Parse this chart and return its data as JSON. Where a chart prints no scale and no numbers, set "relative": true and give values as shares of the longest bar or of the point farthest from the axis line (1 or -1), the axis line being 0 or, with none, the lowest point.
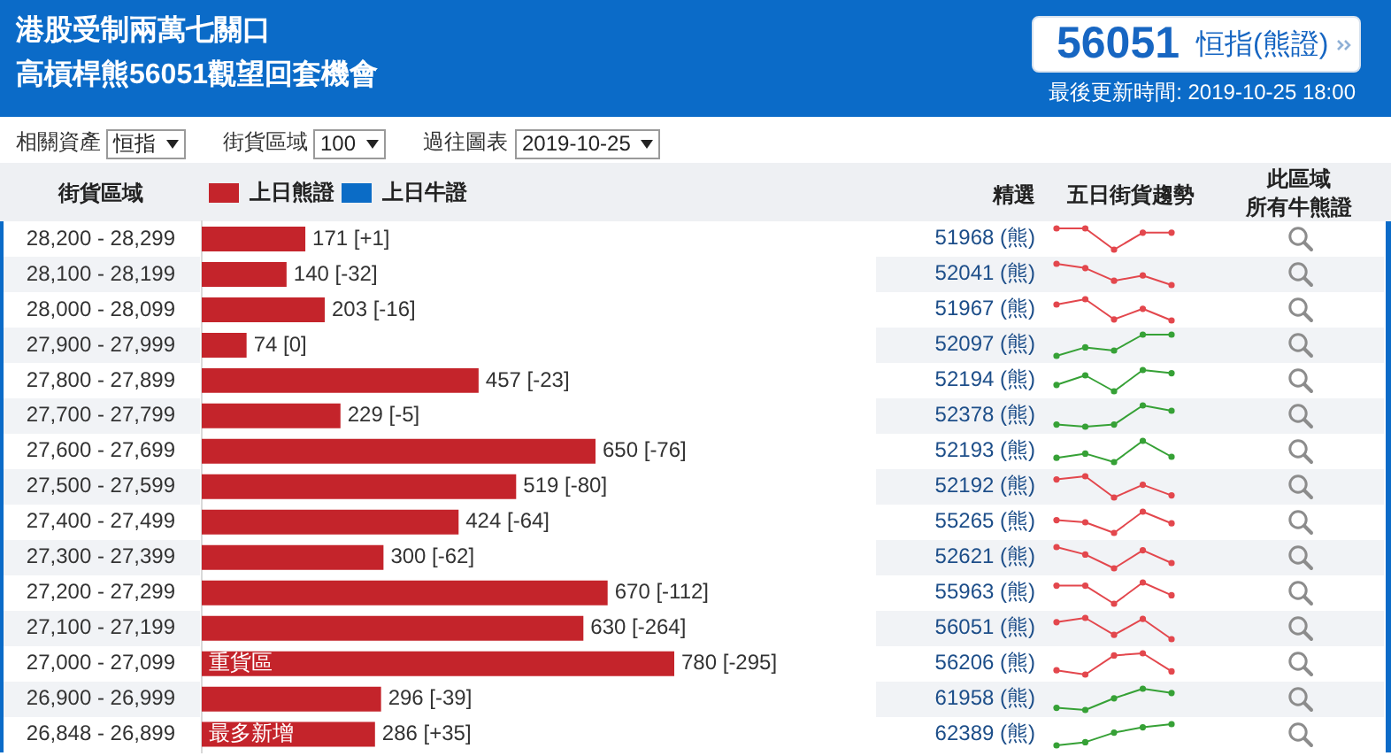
{
  "chart_data": [
    {
      "type": "bar",
      "orientation": "horizontal",
      "title": "港股受制兩萬七關口",
      "subtitle": "高槓桿熊56051觀望回套機會",
      "ylabel": "街貨區域",
      "legend": "top left",
      "categories": [
        "28,200 - 28,299",
        "28,100 - 28,199",
        "28,000 - 28,099",
        "27,900 - 27,999",
        "27,800 - 27,899",
        "27,700 - 27,799",
        "27,600 - 27,699",
        "27,500 - 27,599",
        "27,400 - 27,499",
        "27,300 - 27,399",
        "27,200 - 27,299",
        "27,100 - 27,199",
        "27,000 - 27,099",
        "26,900 - 26,999",
        "26,848 - 26,899"
      ],
      "series": [
        {
          "name": "上日熊證",
          "color": "#c4242b",
          "values": [
            171,
            140,
            203,
            74,
            457,
            229,
            650,
            519,
            424,
            300,
            670,
            630,
            780,
            296,
            286
          ],
          "value_labels": [
            "171 [+1]",
            "140 [-32]",
            "203 [-16]",
            "74 [0]",
            "457 [-23]",
            "229 [-5]",
            "650 [-76]",
            "519 [-80]",
            "424 [-64]",
            "300 [-62]",
            "670 [-112]",
            "630 [-264]",
            "780 [-295]",
            "296 [-39]",
            "286 [+35]"
          ]
        },
        {
          "name": "上日牛證",
          "color": "#0b6cc6",
          "values": [
            null,
            null,
            null,
            null,
            null,
            null,
            null,
            null,
            null,
            null,
            null,
            null,
            null,
            null,
            null
          ]
        }
      ],
      "annotations": [
        "56051",
        "恒指(熊證)",
        "最後更新時間: 2019-10-25 18:00",
        "相關資產",
        "恒指",
        "街貨區域",
        "100",
        "過往圖表",
        "2019-10-25",
        "精選",
        "五日街貨趨勢",
        "此區域",
        "所有牛熊證",
        "51968 (熊)",
        "52041 (熊)",
        "51967 (熊)",
        "52097 (熊)",
        "52194 (熊)",
        "52378 (熊)",
        "52193 (熊)",
        "52192 (熊)",
        "55265 (熊)",
        "52621 (熊)",
        "55963 (熊)",
        "56051 (熊)",
        "56206 (熊)",
        "61958 (熊)",
        "62389 (熊)",
        {
          "text": "重貨區",
          "x": 0,
          "y": "27,000 - 27,099"
        },
        {
          "text": "最多新增",
          "x": 0,
          "y": "26,848 - 26,899"
        }
      ]
    },
    {
      "type": "line",
      "relative": true,
      "categories": [
        null,
        null,
        null,
        null,
        null
      ],
      "values": [
        1,
        1,
        0,
        0.8,
        0.8
      ],
      "color": "#e3474d",
      "marker": "circle"
    },
    {
      "type": "line",
      "relative": true,
      "categories": [
        null,
        null,
        null,
        null,
        null
      ],
      "values": [
        1,
        0.8,
        0.2,
        0.45,
        0
      ],
      "color": "#e3474d",
      "marker": "circle"
    },
    {
      "type": "line",
      "relative": true,
      "categories": [
        null,
        null,
        null,
        null,
        null
      ],
      "values": [
        0.75,
        1,
        0.05,
        0.55,
        0
      ],
      "color": "#e3474d",
      "marker": "circle"
    },
    {
      "type": "line",
      "relative": true,
      "categories": [
        null,
        null,
        null,
        null,
        null
      ],
      "values": [
        0,
        0.4,
        0.25,
        1,
        1
      ],
      "color": "#36a136",
      "marker": "circle"
    },
    {
      "type": "line",
      "relative": true,
      "categories": [
        null,
        null,
        null,
        null,
        null
      ],
      "values": [
        0.3,
        0.75,
        0,
        1,
        0.85
      ],
      "color": "#36a136",
      "marker": "circle"
    },
    {
      "type": "line",
      "relative": true,
      "categories": [
        null,
        null,
        null,
        null,
        null
      ],
      "values": [
        0.1,
        0,
        0.1,
        1,
        0.75
      ],
      "color": "#36a136",
      "marker": "circle"
    },
    {
      "type": "line",
      "relative": true,
      "categories": [
        null,
        null,
        null,
        null,
        null
      ],
      "values": [
        0.2,
        0.4,
        0,
        1,
        0.25
      ],
      "color": "#36a136",
      "marker": "circle"
    },
    {
      "type": "line",
      "relative": true,
      "categories": [
        null,
        null,
        null,
        null,
        null
      ],
      "values": [
        0.85,
        1,
        0,
        0.6,
        0.1
      ],
      "color": "#e3474d",
      "marker": "circle"
    },
    {
      "type": "line",
      "relative": true,
      "categories": [
        null,
        null,
        null,
        null,
        null
      ],
      "values": [
        0.6,
        0.5,
        0,
        1,
        0.45
      ],
      "color": "#e3474d",
      "marker": "circle"
    },
    {
      "type": "line",
      "relative": true,
      "categories": [
        null,
        null,
        null,
        null,
        null
      ],
      "values": [
        1,
        0.65,
        0,
        0.85,
        0.25
      ],
      "color": "#e3474d",
      "marker": "circle"
    },
    {
      "type": "line",
      "relative": true,
      "categories": [
        null,
        null,
        null,
        null,
        null
      ],
      "values": [
        0.85,
        0.85,
        0,
        1,
        0.4
      ],
      "color": "#e3474d",
      "marker": "circle"
    },
    {
      "type": "line",
      "relative": true,
      "categories": [
        null,
        null,
        null,
        null,
        null
      ],
      "values": [
        0.8,
        1,
        0.2,
        0.95,
        0
      ],
      "color": "#e3474d",
      "marker": "circle"
    },
    {
      "type": "line",
      "relative": true,
      "categories": [
        null,
        null,
        null,
        null,
        null
      ],
      "values": [
        0.2,
        0,
        0.9,
        1,
        0.15
      ],
      "color": "#e3474d",
      "marker": "circle"
    },
    {
      "type": "line",
      "relative": true,
      "categories": [
        null,
        null,
        null,
        null,
        null
      ],
      "values": [
        0.1,
        0,
        0.55,
        1,
        0.8
      ],
      "color": "#36a136",
      "marker": "circle"
    },
    {
      "type": "line",
      "relative": true,
      "categories": [
        null,
        null,
        null,
        null,
        null
      ],
      "values": [
        0,
        0.15,
        0.6,
        0.85,
        1
      ],
      "color": "#36a136",
      "marker": "circle"
    }
  ]
}
